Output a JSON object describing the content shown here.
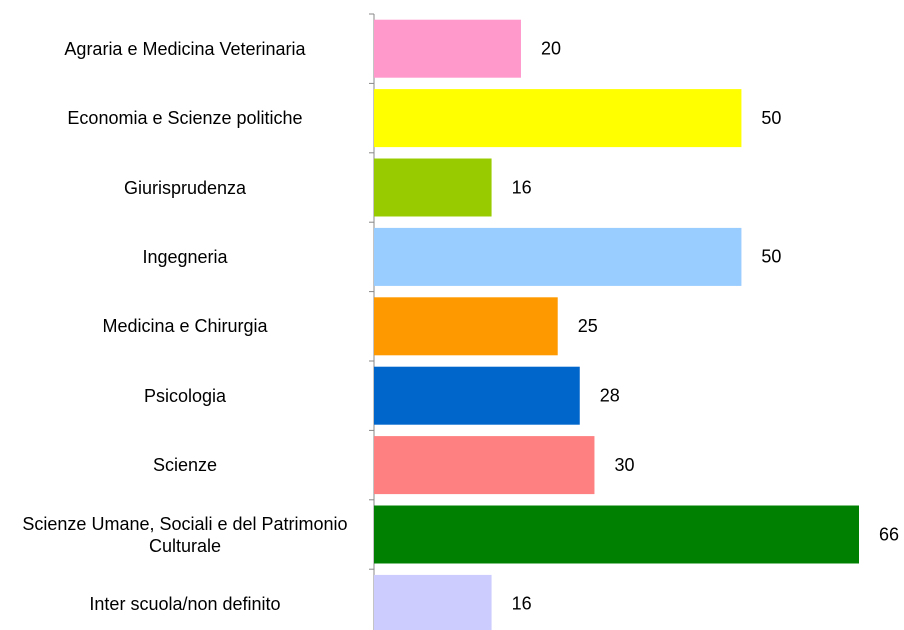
{
  "chart_data": {
    "type": "barh",
    "categories": [
      "Agraria e Medicina Veterinaria",
      "Economia e Scienze politiche",
      "Giurisprudenza",
      "Ingegneria",
      "Medicina e Chirurgia",
      "Psicologia",
      "Scienze",
      "Scienze Umane, Sociali e del Patrimonio Culturale",
      "Inter scuola/non definito"
    ],
    "values": [
      20,
      50,
      16,
      50,
      25,
      28,
      30,
      66,
      16
    ],
    "colors": [
      "#ff99cc",
      "#ffff00",
      "#99cc00",
      "#99ccff",
      "#ff9900",
      "#0066cc",
      "#ff8080",
      "#008000",
      "#ccccff"
    ]
  }
}
